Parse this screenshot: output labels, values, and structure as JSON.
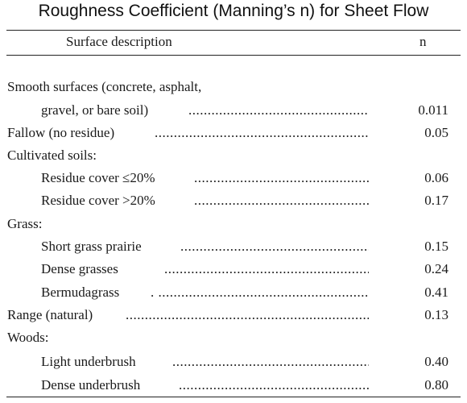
{
  "title": "Roughness Coefficient (Manning’s n) for Sheet Flow",
  "table": {
    "headers": {
      "description": "Surface description",
      "n": "n"
    },
    "rows": [
      {
        "label": "Smooth surfaces (concrete, asphalt,",
        "value": ""
      },
      {
        "label": "gravel, or bare soil)",
        "value": "0.011"
      },
      {
        "label": "Fallow (no residue)",
        "value": "0.05"
      },
      {
        "label": "Cultivated soils:",
        "value": ""
      },
      {
        "label": "Residue cover ≤20%",
        "value": "0.06"
      },
      {
        "label": "Residue cover >20%",
        "value": "0.17"
      },
      {
        "label": "Grass:",
        "value": ""
      },
      {
        "label": "Short grass prairie",
        "value": "0.15"
      },
      {
        "label": "Dense grasses",
        "value": "0.24"
      },
      {
        "label": "Bermudagrass",
        "value": "0.41"
      },
      {
        "label": "Range (natural)",
        "value": "0.13"
      },
      {
        "label": "Woods:",
        "value": ""
      },
      {
        "label": "Light underbrush",
        "value": "0.40"
      },
      {
        "label": "Dense underbrush",
        "value": "0.80"
      }
    ]
  }
}
